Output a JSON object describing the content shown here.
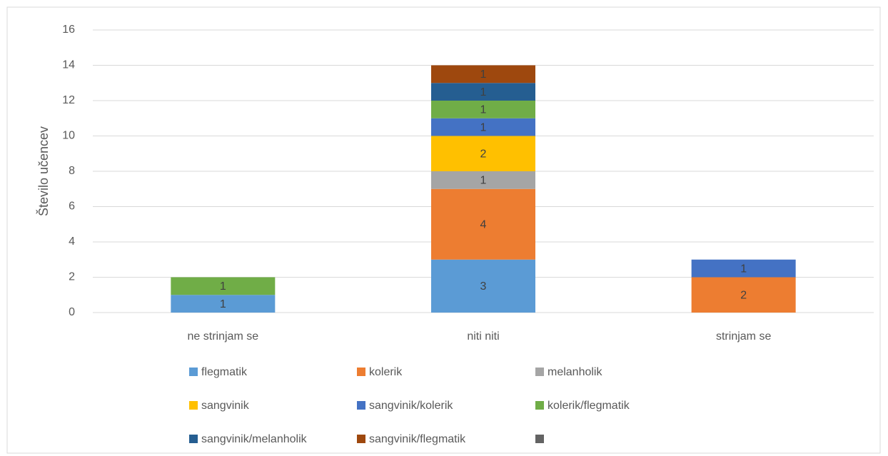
{
  "chart_data": {
    "type": "stacked_bar",
    "y_label": "Število učencev",
    "categories": [
      "ne strinjam se",
      "niti niti",
      "strinjam se"
    ],
    "series": [
      {
        "name": "flegmatik",
        "color": "#5b9bd5",
        "values": [
          1,
          3,
          null
        ]
      },
      {
        "name": "kolerik",
        "color": "#ed7d31",
        "values": [
          null,
          4,
          2
        ]
      },
      {
        "name": "melanholik",
        "color": "#a5a5a5",
        "values": [
          null,
          1,
          null
        ]
      },
      {
        "name": "sangvinik",
        "color": "#ffc000",
        "values": [
          null,
          2,
          null
        ]
      },
      {
        "name": "sangvinik/kolerik",
        "color": "#4472c4",
        "values": [
          null,
          1,
          1
        ]
      },
      {
        "name": "kolerik/flegmatik",
        "color": "#70ad47",
        "values": [
          1,
          1,
          null
        ]
      },
      {
        "name": "sangvinik/melanholik",
        "color": "#255e91",
        "values": [
          null,
          1,
          null
        ]
      },
      {
        "name": "sangvinik/flegmatik",
        "color": "#9e480e",
        "values": [
          null,
          1,
          null
        ]
      },
      {
        "color": "#636363",
        "values": [
          null,
          null,
          null
        ]
      }
    ],
    "ylim": [
      0,
      16
    ],
    "yticks": [
      0,
      2,
      4,
      6,
      8,
      10,
      12,
      14,
      16
    ],
    "grid": true
  }
}
